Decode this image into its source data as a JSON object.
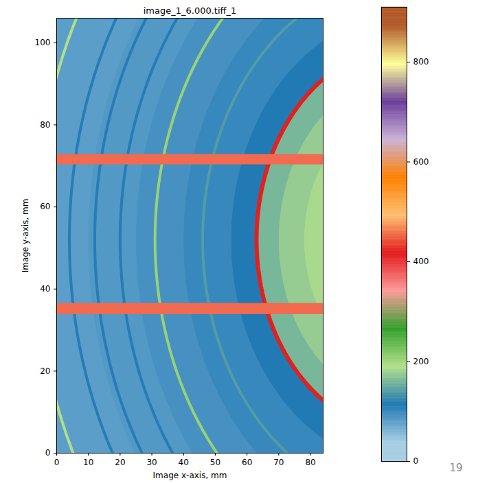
{
  "chart_data": {
    "type": "heatmap",
    "title": "image_1_6.000.tiff_1",
    "x_label": "Image x-axis, mm",
    "y_label": "Image y-axis, mm",
    "xlim": [
      0,
      84
    ],
    "ylim": [
      0,
      106
    ],
    "xticks": [
      0,
      10,
      20,
      30,
      40,
      50,
      60,
      70,
      80
    ],
    "yticks": [
      0,
      20,
      40,
      60,
      80,
      100
    ],
    "background": {
      "center": [
        110,
        52
      ],
      "radii": [
        140,
        100,
        85,
        70,
        55,
        47,
        40,
        32
      ],
      "values": [
        80,
        85,
        92,
        100,
        115,
        160,
        175,
        185
      ]
    },
    "rings": {
      "center": [
        110,
        52
      ],
      "radii": [
        117,
        106,
        98,
        90,
        79,
        64,
        47
      ],
      "values": [
        190,
        110,
        110,
        110,
        205,
        140,
        420
      ]
    },
    "masks": {
      "y": [
        [
          33.8,
          36.5
        ],
        [
          70.3,
          72.8
        ]
      ],
      "color": "#f26a50"
    },
    "colorbar": {
      "range": [
        0,
        910
      ],
      "ticks": [
        0,
        200,
        400,
        600,
        800
      ],
      "colors": [
        "#a6cee3",
        "#1f78b4",
        "#b2df8a",
        "#33a02c",
        "#fb9a99",
        "#e31a1c",
        "#fdbf6f",
        "#ff7f00",
        "#cab2d6",
        "#6a3d9a",
        "#ffff99",
        "#b15928"
      ]
    },
    "page_number": "19"
  }
}
